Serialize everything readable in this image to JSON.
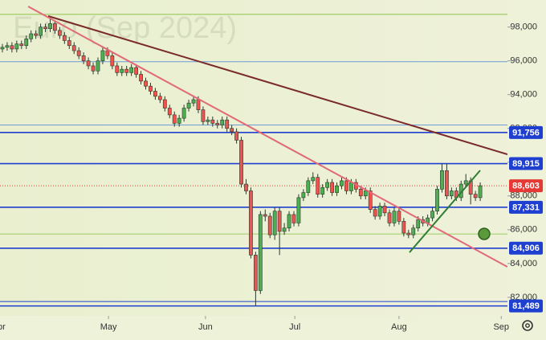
{
  "chart_data": {
    "type": "candlestick",
    "watermark": "Euro (Sep 2024)",
    "up_color": "#4caf50",
    "down_color": "#ef5350",
    "open": [
      96700,
      96800,
      96900,
      96700,
      97000,
      96900,
      97300,
      97600,
      97500,
      98000,
      97900,
      98200,
      97800,
      97500,
      97200,
      96900,
      96600,
      96300,
      96000,
      95700,
      95400,
      96000,
      96600,
      96300,
      95700,
      95300,
      95500,
      95300,
      95600,
      95200,
      94800,
      94500,
      94200,
      93900,
      93700,
      93200,
      92800,
      92300,
      92600,
      93200,
      93500,
      93700,
      93100,
      92400,
      92500,
      92300,
      92200,
      92500,
      92000,
      91800,
      91300,
      88700,
      88300,
      84500,
      82400,
      86900,
      86800,
      85700,
      87100,
      85900,
      86100,
      86900,
      86400,
      87900,
      88200,
      88900,
      89100,
      88100,
      88500,
      88800,
      88200,
      88600,
      88900,
      88300,
      88800,
      88400,
      88000,
      88300,
      87200,
      86800,
      87400,
      87000,
      86400,
      87100,
      86500,
      85800,
      85700,
      86100,
      86600,
      86400,
      86700,
      87100,
      88400,
      89500,
      88000,
      88300,
      87900,
      88700,
      88900,
      88100,
      87900
    ],
    "high": [
      97000,
      97100,
      97100,
      97200,
      97200,
      97500,
      97800,
      97800,
      98200,
      98200,
      98500,
      98400,
      98000,
      97700,
      97400,
      97100,
      96800,
      96500,
      96200,
      95900,
      96200,
      96800,
      96800,
      96500,
      95900,
      95700,
      95700,
      95800,
      95800,
      95400,
      95000,
      94700,
      94400,
      94100,
      93900,
      93400,
      93000,
      92800,
      93400,
      93700,
      93900,
      93900,
      93300,
      92700,
      92700,
      92500,
      92700,
      92700,
      92200,
      92000,
      91500,
      89000,
      88500,
      84700,
      87100,
      87200,
      87000,
      87300,
      87300,
      86400,
      87100,
      87100,
      88100,
      88400,
      89100,
      89400,
      89300,
      88700,
      89000,
      89000,
      88800,
      89100,
      89100,
      89000,
      89000,
      88600,
      88500,
      88500,
      87400,
      87600,
      87600,
      87200,
      87300,
      87300,
      86700,
      86000,
      86300,
      86800,
      86800,
      86900,
      87300,
      88600,
      89900,
      89900,
      88500,
      88500,
      88900,
      89300,
      89100,
      88300,
      88800
    ],
    "low": [
      96500,
      96600,
      96500,
      96500,
      96700,
      96700,
      97100,
      97300,
      97300,
      97700,
      97700,
      97600,
      97300,
      97000,
      96700,
      96400,
      96100,
      95800,
      95500,
      95200,
      95200,
      95800,
      96100,
      95500,
      95100,
      95100,
      95100,
      95100,
      95000,
      94600,
      94300,
      94000,
      93700,
      93500,
      93000,
      92600,
      92100,
      92100,
      92400,
      93000,
      93300,
      92900,
      92200,
      92200,
      92100,
      92000,
      92000,
      91800,
      91600,
      91100,
      88500,
      88100,
      84300,
      81500,
      82200,
      86500,
      85500,
      85400,
      84500,
      85700,
      85900,
      86200,
      86200,
      87700,
      88000,
      88700,
      87900,
      87900,
      88300,
      88000,
      88000,
      88400,
      88100,
      88100,
      88200,
      87800,
      87800,
      87000,
      86600,
      86600,
      86800,
      86200,
      86200,
      86300,
      85600,
      85500,
      85500,
      85900,
      86200,
      86200,
      86500,
      86900,
      88200,
      87800,
      87800,
      87700,
      87700,
      88500,
      87500,
      87700,
      87700
    ],
    "close": [
      96800,
      96900,
      96700,
      97000,
      96900,
      97300,
      97600,
      97500,
      98000,
      97900,
      98200,
      97800,
      97500,
      97200,
      96900,
      96600,
      96300,
      96000,
      95700,
      95400,
      96000,
      96600,
      96300,
      95700,
      95300,
      95500,
      95300,
      95600,
      95200,
      94800,
      94500,
      94200,
      93900,
      93700,
      93200,
      92800,
      92300,
      92600,
      93200,
      93500,
      93700,
      93100,
      92400,
      92500,
      92300,
      92200,
      92500,
      92000,
      91800,
      91300,
      88700,
      88300,
      84500,
      82400,
      86900,
      86800,
      85700,
      87100,
      85900,
      86100,
      86900,
      86400,
      87900,
      88200,
      88900,
      89100,
      88100,
      88500,
      88800,
      88200,
      88600,
      88900,
      88300,
      88800,
      88400,
      88000,
      88300,
      87200,
      86800,
      87400,
      87000,
      86400,
      87100,
      86500,
      85800,
      85700,
      86100,
      86600,
      86400,
      86700,
      87100,
      88400,
      89500,
      88000,
      88300,
      87900,
      88700,
      88900,
      88100,
      87900,
      88603
    ],
    "xlim": [
      -0.5,
      105.7
    ],
    "xticks": [
      {
        "value": -0.8,
        "label": "Apr"
      },
      {
        "value": 22.2,
        "label": "May"
      },
      {
        "value": 42.5,
        "label": "Jun"
      },
      {
        "value": 61.2,
        "label": "Jul"
      },
      {
        "value": 83,
        "label": "Aug"
      },
      {
        "value": 104.4,
        "label": "Sep"
      }
    ],
    "ylim": [
      80900,
      99600
    ],
    "yticks": [
      {
        "value": 82000,
        "label": "82,000"
      },
      {
        "value": 84000,
        "label": "84,000"
      },
      {
        "value": 86000,
        "label": "86,000"
      },
      {
        "value": 88000,
        "label": "88,000"
      },
      {
        "value": 90000,
        "label": "90,000"
      },
      {
        "value": 92000,
        "label": "92,000"
      },
      {
        "value": 94000,
        "label": "94,000"
      },
      {
        "value": 96000,
        "label": "96,000"
      },
      {
        "value": 98000,
        "label": "98,000"
      }
    ],
    "levels": [
      {
        "value": 98750,
        "color": "#8bc34a"
      },
      {
        "value": 95950,
        "color": "#6c9bd8"
      },
      {
        "value": 92200,
        "color": "#6c9bd8"
      },
      {
        "value": 91756,
        "label": "91,756",
        "color": "#1e3fcf"
      },
      {
        "value": 89915,
        "label": "89,915",
        "color": "#1e3fcf"
      },
      {
        "value": 87331,
        "label": "87,331",
        "color": "#1e3fcf"
      },
      {
        "value": 85750,
        "color": "#9ccc65"
      },
      {
        "value": 84906,
        "label": "84,906",
        "color": "#1e3fcf"
      },
      {
        "value": 81750,
        "color": "#1e3fcf"
      },
      {
        "value": 81489,
        "label": "81,489",
        "color": "#1e3fcf"
      }
    ],
    "last_price": {
      "value": 88603,
      "label": "88,603",
      "color": "#e53935"
    }
  }
}
